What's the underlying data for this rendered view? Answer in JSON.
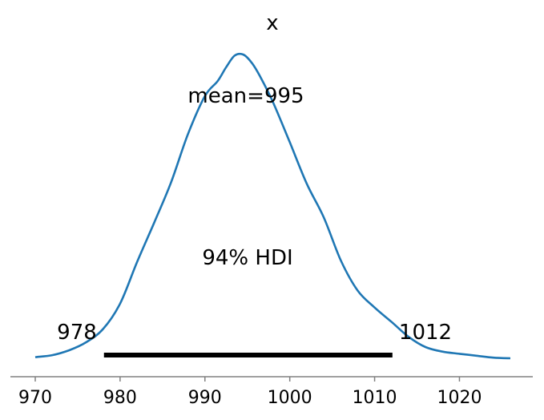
{
  "chart_data": {
    "type": "area",
    "title": "x",
    "xlabel": "",
    "ylabel": "",
    "xlim": [
      968.5,
      1028.5
    ],
    "xticks": [
      970,
      980,
      990,
      1000,
      1010,
      1020
    ],
    "tick_labels": [
      "970",
      "980",
      "990",
      "1000",
      "1010",
      "1020"
    ],
    "grid": false,
    "y_axis_visible": false,
    "line_color": "#1f77b4",
    "hdi_color": "#000000",
    "series": [
      {
        "x": [
          970,
          972,
          974,
          976,
          978,
          980,
          982,
          984,
          986,
          988,
          990,
          991.5,
          992.5,
          993.5,
          994.5,
          995.5,
          996.5,
          998,
          1000,
          1002,
          1004,
          1006,
          1008,
          1010,
          1012,
          1014,
          1016,
          1018,
          1020,
          1022,
          1024,
          1026
        ],
        "y": [
          0.0017,
          0.00341,
          0.00767,
          0.0146,
          0.0261,
          0.0481,
          0.0841,
          0.118,
          0.153,
          0.195,
          0.228,
          0.241,
          0.253,
          0.263,
          0.264,
          0.257,
          0.245,
          0.223,
          0.188,
          0.152,
          0.123,
          0.0858,
          0.0594,
          0.0447,
          0.0322,
          0.0193,
          0.0104,
          0.00648,
          0.00462,
          0.00292,
          0.00122,
          0.00068
        ]
      }
    ],
    "ylim": [
      0,
      0.282
    ],
    "annotations": {
      "mean_label": "mean=995",
      "hdi_label": "94% HDI",
      "hdi_low_label": "978",
      "hdi_high_label": "1012",
      "hdi_low": 978.1,
      "hdi_high": 1012.1
    }
  }
}
